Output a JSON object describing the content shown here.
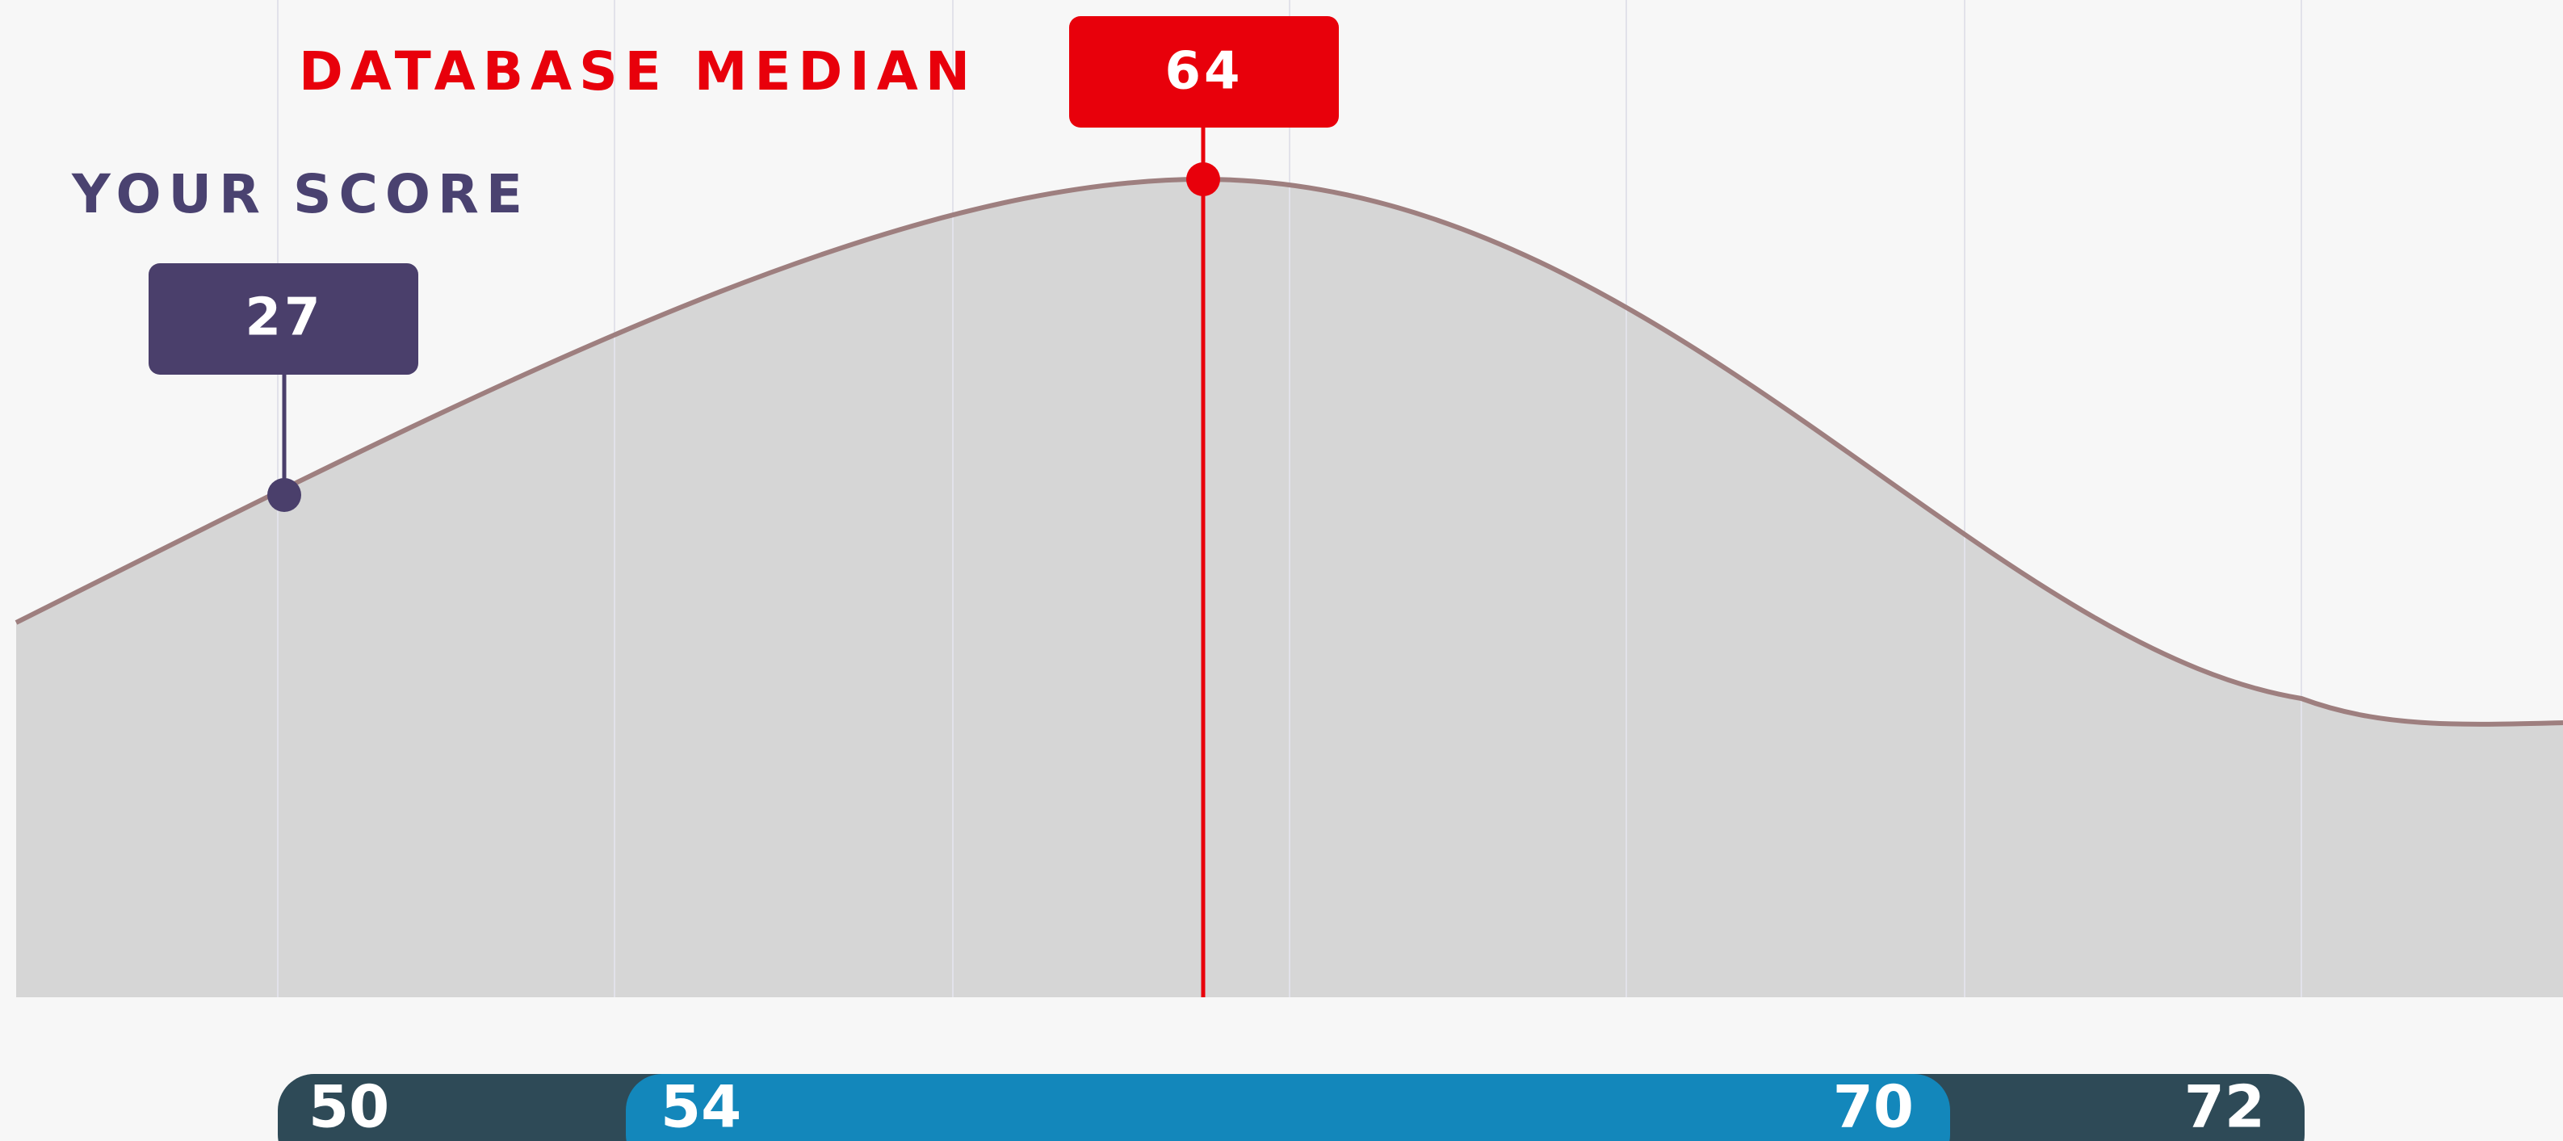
{
  "median": {
    "label": "DATABASE MEDIAN",
    "value": "64"
  },
  "score": {
    "label": "YOUR SCORE",
    "value": "27"
  },
  "range": {
    "outer_low": "50",
    "inner_low": "54",
    "inner_high": "70",
    "outer_high": "72"
  }
}
